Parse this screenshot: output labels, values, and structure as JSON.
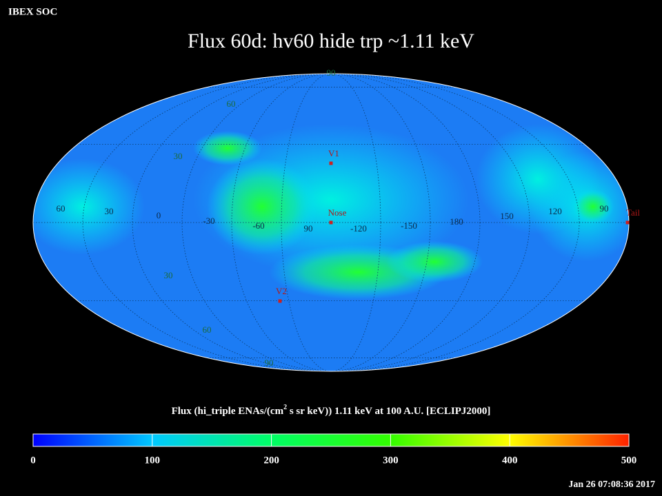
{
  "header": {
    "label": "IBEX SOC",
    "title": "Flux   60d: hv60 hide trp ~1.11 keV",
    "timestamp": "Jan 26 07:08:36 2017"
  },
  "map": {
    "latitude_labels": [
      "90",
      "60",
      "30",
      "30",
      "60",
      "90"
    ],
    "longitude_labels": [
      "60",
      "30",
      "0",
      "-30",
      "-60",
      "90",
      "-120",
      "-150",
      "180",
      "150",
      "120",
      "90"
    ],
    "markers": [
      {
        "label": "V1"
      },
      {
        "label": "Nose"
      },
      {
        "label": "V2"
      },
      {
        "label": "Tail"
      }
    ]
  },
  "colorbar": {
    "title_parts": [
      "Flux (hi_triple ENAs/(cm",
      "2",
      " s sr keV))  1.11 keV at 100 A.U. [ECLIPJ2000]"
    ],
    "range": [
      0,
      500
    ],
    "ticks": [
      0,
      100,
      200,
      300,
      400,
      500
    ]
  }
}
